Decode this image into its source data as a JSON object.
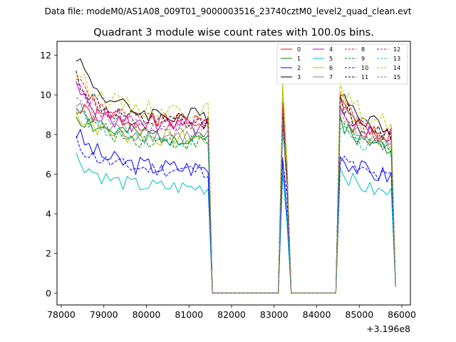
{
  "figure": {
    "suptitle": "Data file: modeM0/AS1A08_009T01_9000003516_23740cztM0_level2_quad_clean.evt",
    "offset_label": "+3.196e8"
  },
  "chart_data": {
    "type": "line",
    "title": "Quadrant 3 module wise count rates with 100.0s bins.",
    "xlabel": "",
    "ylabel": "",
    "xlim": [
      77900,
      86200
    ],
    "ylim": [
      -0.6,
      12.7
    ],
    "x_offset": 319600000,
    "xticks": [
      78000,
      79000,
      80000,
      81000,
      82000,
      83000,
      84000,
      85000,
      86000
    ],
    "xtick_labels": [
      "78000",
      "79000",
      "80000",
      "81000",
      "82000",
      "83000",
      "84000",
      "85000",
      "86000"
    ],
    "yticks": [
      0,
      2,
      4,
      6,
      8,
      10,
      12
    ],
    "ytick_labels": [
      "0",
      "2",
      "4",
      "6",
      "8",
      "10",
      "12"
    ],
    "legend_position": "top-right",
    "segments": [
      {
        "x_start": 78350,
        "x_end": 81450,
        "points": 32
      },
      {
        "x_start": 83200,
        "x_end": 83300,
        "points": 2
      },
      {
        "x_start": 84550,
        "x_end": 85750,
        "points": 13
      }
    ],
    "zero_ranges": [
      [
        81550,
        83100
      ],
      [
        83400,
        84450
      ]
    ],
    "segment_end_x": 85850,
    "series": [
      {
        "name": "0",
        "color": "#ff0000",
        "dashed": false,
        "start": 9.3,
        "level": 8.6,
        "amp": 0.45,
        "seed": 1,
        "peak": 9.0
      },
      {
        "name": "1",
        "color": "#008000",
        "dashed": false,
        "start": 9.0,
        "level": 7.9,
        "amp": 0.5,
        "seed": 2,
        "peak": 8.8
      },
      {
        "name": "2",
        "color": "#0000ff",
        "dashed": false,
        "start": 8.1,
        "level": 6.3,
        "amp": 0.5,
        "seed": 3,
        "peak": 7.0
      },
      {
        "name": "3",
        "color": "#000000",
        "dashed": false,
        "start": 12.1,
        "level": 8.9,
        "amp": 0.45,
        "seed": 4,
        "peak": 10.3
      },
      {
        "name": "4",
        "color": "#bf00bf",
        "dashed": false,
        "start": 10.3,
        "level": 8.3,
        "amp": 0.5,
        "seed": 5,
        "peak": 9.5
      },
      {
        "name": "5",
        "color": "#00bfbf",
        "dashed": false,
        "start": 6.9,
        "level": 5.3,
        "amp": 0.4,
        "seed": 6,
        "peak": 6.3
      },
      {
        "name": "6",
        "color": "#bfbf00",
        "dashed": false,
        "start": 9.1,
        "level": 7.8,
        "amp": 0.45,
        "seed": 7,
        "peak": 10.4
      },
      {
        "name": "7",
        "color": "#808080",
        "dashed": false,
        "start": 9.5,
        "level": 7.9,
        "amp": 0.4,
        "seed": 8,
        "peak": 9.0
      },
      {
        "name": "8",
        "color": "#ff0000",
        "dashed": true,
        "start": 11.0,
        "level": 8.6,
        "amp": 0.4,
        "seed": 9,
        "peak": 9.9
      },
      {
        "name": "9",
        "color": "#008000",
        "dashed": true,
        "start": 9.4,
        "level": 7.6,
        "amp": 0.4,
        "seed": 10,
        "peak": 8.9
      },
      {
        "name": "10",
        "color": "#0000ff",
        "dashed": true,
        "start": 7.6,
        "level": 6.2,
        "amp": 0.4,
        "seed": 11,
        "peak": 6.9
      },
      {
        "name": "11",
        "color": "#000000",
        "dashed": true,
        "start": 11.0,
        "level": 8.5,
        "amp": 0.45,
        "seed": 12,
        "peak": 9.7
      },
      {
        "name": "12",
        "color": "#bf00bf",
        "dashed": true,
        "start": 10.5,
        "level": 8.5,
        "amp": 0.4,
        "seed": 13,
        "peak": 9.3
      },
      {
        "name": "13",
        "color": "#00bfbf",
        "dashed": true,
        "start": 9.3,
        "level": 7.7,
        "amp": 0.4,
        "seed": 14,
        "peak": 8.5
      },
      {
        "name": "14",
        "color": "#bfbf00",
        "dashed": true,
        "start": 11.2,
        "level": 9.2,
        "amp": 0.45,
        "seed": 15,
        "peak": 10.3
      },
      {
        "name": "15",
        "color": "#808080",
        "dashed": true,
        "start": 10.2,
        "level": 8.2,
        "amp": 0.4,
        "seed": 16,
        "peak": 9.1
      }
    ]
  }
}
